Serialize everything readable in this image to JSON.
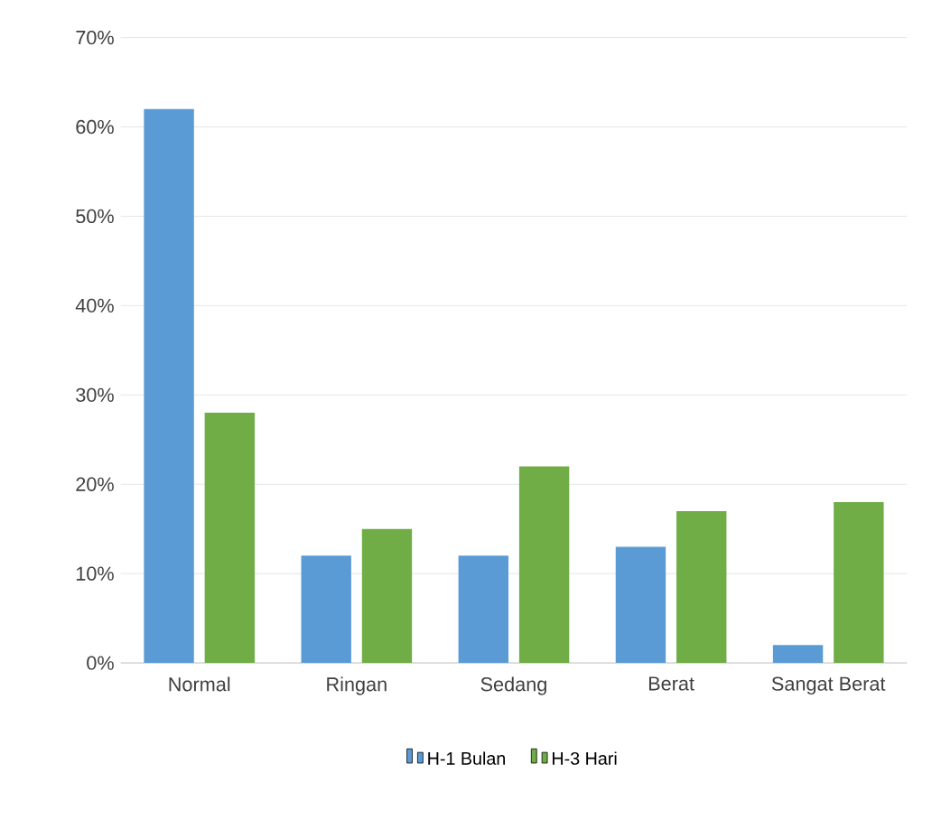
{
  "chart_data": {
    "type": "bar",
    "categories": [
      "Normal",
      "Ringan",
      "Sedang",
      "Berat",
      "Sangat Berat"
    ],
    "series": [
      {
        "name": "H-1 Bulan",
        "color": "#5b9bd5",
        "values": [
          62,
          12,
          12,
          13,
          2
        ]
      },
      {
        "name": "H-3 Hari",
        "color": "#70ad47",
        "values": [
          28,
          15,
          22,
          17,
          18
        ]
      }
    ],
    "ylim": [
      0,
      70
    ],
    "yticks": [
      {
        "value": 0,
        "label": "0%"
      },
      {
        "value": 10,
        "label": "10%"
      },
      {
        "value": 20,
        "label": "20%"
      },
      {
        "value": 30,
        "label": "30%"
      },
      {
        "value": 40,
        "label": "40%"
      },
      {
        "value": 50,
        "label": "50%"
      },
      {
        "value": 60,
        "label": "60%"
      },
      {
        "value": 70,
        "label": "70%"
      }
    ],
    "grid": "y",
    "legend": "bottom"
  }
}
